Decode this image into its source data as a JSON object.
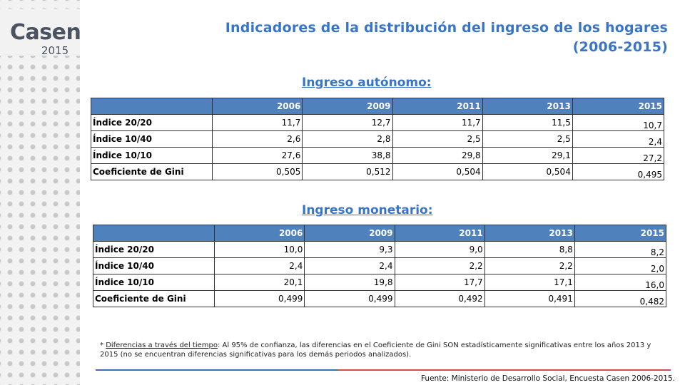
{
  "logo": {
    "word": "Casen",
    "year": "2015"
  },
  "title_line1": "Indicadores de la distribución del ingreso de los hogares",
  "title_line2": "(2006-2015)",
  "tables": [
    {
      "heading": "Ingreso autónomo:",
      "years": [
        "2006",
        "2009",
        "2011",
        "2013",
        "2015"
      ],
      "rows": [
        {
          "label": "Índice 20/20",
          "values": [
            "11,7",
            "12,7",
            "11,7",
            "11,5",
            "10,7"
          ]
        },
        {
          "label": "Índice 10/40",
          "values": [
            "2,6",
            "2,8",
            "2,5",
            "2,5",
            "2,4"
          ]
        },
        {
          "label": "Índice 10/10",
          "values": [
            "27,6",
            "38,8",
            "29,8",
            "29,1",
            "27,2"
          ]
        },
        {
          "label": "Coeficiente de Gini",
          "values": [
            "0,505",
            "0,512",
            "0,504",
            "0,504",
            "0,495"
          ]
        }
      ]
    },
    {
      "heading": "Ingreso monetario:",
      "years": [
        "2006",
        "2009",
        "2011",
        "2013",
        "2015"
      ],
      "rows": [
        {
          "label": "Índice 20/20",
          "values": [
            "10,0",
            "9,3",
            "9,0",
            "8,8",
            "8,2"
          ]
        },
        {
          "label": "Índice 10/40",
          "values": [
            "2,4",
            "2,4",
            "2,2",
            "2,2",
            "2,0"
          ]
        },
        {
          "label": "Índice 10/10",
          "values": [
            "20,1",
            "19,8",
            "17,7",
            "17,1",
            "16,0"
          ]
        },
        {
          "label": "Coeficiente de Gini",
          "values": [
            "0,499",
            "0,499",
            "0,492",
            "0,491",
            "0,482"
          ]
        }
      ]
    }
  ],
  "note": {
    "prefix": "* ",
    "underlined": "Diferencias a través del tiempo",
    "text": ": Al 95% de confianza, las diferencias en el Coeficiente de Gini SON estadísticamente significativas entre los años 2013 y 2015 (no se encuentran diferencias significativas para los demás periodos analizados)."
  },
  "source": "Fuente: Ministerio de Desarrollo Social, Encuesta Casen 2006-2015.",
  "colors": {
    "accent": "#3875c9",
    "header_fill": "#4f81bd",
    "rule_blue": "#3e6fb0",
    "rule_red": "#d34b4b"
  }
}
